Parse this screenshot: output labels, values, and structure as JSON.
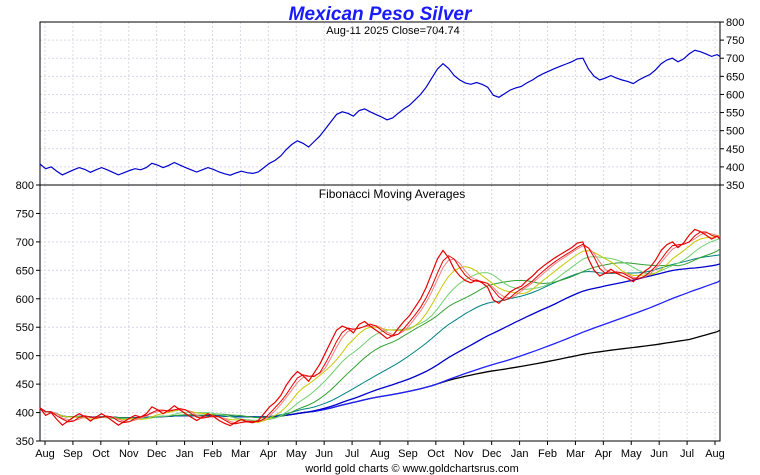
{
  "chart_data": [
    {
      "type": "line",
      "title": "Mexican Peso Silver",
      "subtitle": "Aug-11  2025   Close=704.74",
      "y_axis_side": "right",
      "ylim": [
        350,
        800
      ],
      "yticks": [
        350,
        400,
        450,
        500,
        550,
        600,
        650,
        700,
        750,
        800
      ],
      "grid": true,
      "series": [
        {
          "color": "#0000cc",
          "points": [
            [
              0,
              408
            ],
            [
              2,
              395
            ],
            [
              4,
              400
            ],
            [
              6,
              388
            ],
            [
              8,
              378
            ],
            [
              10,
              385
            ],
            [
              12,
              392
            ],
            [
              14,
              398
            ],
            [
              16,
              393
            ],
            [
              18,
              385
            ],
            [
              20,
              392
            ],
            [
              22,
              398
            ],
            [
              24,
              392
            ],
            [
              26,
              385
            ],
            [
              28,
              378
            ],
            [
              30,
              384
            ],
            [
              32,
              390
            ],
            [
              34,
              395
            ],
            [
              36,
              392
            ],
            [
              38,
              398
            ],
            [
              40,
              410
            ],
            [
              42,
              405
            ],
            [
              44,
              398
            ],
            [
              46,
              404
            ],
            [
              48,
              412
            ],
            [
              50,
              405
            ],
            [
              52,
              398
            ],
            [
              54,
              392
            ],
            [
              56,
              386
            ],
            [
              58,
              392
            ],
            [
              60,
              398
            ],
            [
              62,
              393
            ],
            [
              64,
              386
            ],
            [
              66,
              381
            ],
            [
              68,
              377
            ],
            [
              70,
              383
            ],
            [
              72,
              388
            ],
            [
              74,
              384
            ],
            [
              76,
              382
            ],
            [
              78,
              386
            ],
            [
              80,
              398
            ],
            [
              82,
              410
            ],
            [
              84,
              418
            ],
            [
              86,
              430
            ],
            [
              88,
              448
            ],
            [
              90,
              462
            ],
            [
              92,
              472
            ],
            [
              94,
              465
            ],
            [
              96,
              455
            ],
            [
              98,
              470
            ],
            [
              100,
              485
            ],
            [
              102,
              505
            ],
            [
              104,
              525
            ],
            [
              106,
              545
            ],
            [
              108,
              552
            ],
            [
              110,
              548
            ],
            [
              112,
              540
            ],
            [
              114,
              555
            ],
            [
              116,
              560
            ],
            [
              118,
              552
            ],
            [
              120,
              545
            ],
            [
              122,
              538
            ],
            [
              124,
              530
            ],
            [
              126,
              535
            ],
            [
              128,
              548
            ],
            [
              130,
              560
            ],
            [
              132,
              570
            ],
            [
              134,
              585
            ],
            [
              136,
              600
            ],
            [
              138,
              620
            ],
            [
              140,
              645
            ],
            [
              142,
              670
            ],
            [
              144,
              685
            ],
            [
              146,
              672
            ],
            [
              148,
              652
            ],
            [
              150,
              640
            ],
            [
              152,
              632
            ],
            [
              154,
              628
            ],
            [
              156,
              633
            ],
            [
              158,
              628
            ],
            [
              160,
              620
            ],
            [
              162,
              598
            ],
            [
              164,
              592
            ],
            [
              166,
              602
            ],
            [
              168,
              612
            ],
            [
              170,
              618
            ],
            [
              172,
              622
            ],
            [
              174,
              632
            ],
            [
              176,
              640
            ],
            [
              178,
              650
            ],
            [
              180,
              658
            ],
            [
              182,
              665
            ],
            [
              184,
              672
            ],
            [
              186,
              678
            ],
            [
              188,
              684
            ],
            [
              190,
              690
            ],
            [
              192,
              698
            ],
            [
              194,
              700
            ],
            [
              196,
              670
            ],
            [
              198,
              650
            ],
            [
              200,
              640
            ],
            [
              202,
              645
            ],
            [
              204,
              652
            ],
            [
              206,
              645
            ],
            [
              208,
              640
            ],
            [
              210,
              636
            ],
            [
              212,
              630
            ],
            [
              214,
              640
            ],
            [
              216,
              648
            ],
            [
              218,
              655
            ],
            [
              220,
              668
            ],
            [
              222,
              685
            ],
            [
              224,
              695
            ],
            [
              226,
              700
            ],
            [
              228,
              690
            ],
            [
              230,
              698
            ],
            [
              232,
              712
            ],
            [
              234,
              722
            ],
            [
              236,
              718
            ],
            [
              238,
              712
            ],
            [
              240,
              705
            ],
            [
              242,
              710
            ],
            [
              243,
              704.74
            ]
          ]
        }
      ]
    },
    {
      "type": "line",
      "title": "Fibonacci Moving Averages",
      "y_axis_side": "left",
      "ylim": [
        350,
        800
      ],
      "yticks": [
        350,
        400,
        450,
        500,
        550,
        600,
        650,
        700,
        750,
        800
      ],
      "categories": [
        "Aug",
        "Sep",
        "Oct",
        "Nov",
        "Dec",
        "Jan",
        "Feb",
        "Mar",
        "Apr",
        "May",
        "Jun",
        "Jul",
        "Aug",
        "Sep",
        "Oct",
        "Nov",
        "Dec",
        "Jan",
        "Feb",
        "Mar",
        "Apr",
        "May",
        "Jun",
        "Jul",
        "Aug"
      ],
      "grid": true,
      "price_series_color": "#e60000",
      "moving_average_colors": [
        "#e60000",
        "#f08080",
        "#c8c800",
        "#70d070",
        "#30a030",
        "#008080",
        "#0000cc",
        "#2020ff",
        "#000000"
      ],
      "moving_average_periods": [
        5,
        8,
        13,
        21,
        34,
        55,
        89,
        144,
        233
      ]
    }
  ],
  "footer": "world gold charts © www.goldchartsrus.com"
}
